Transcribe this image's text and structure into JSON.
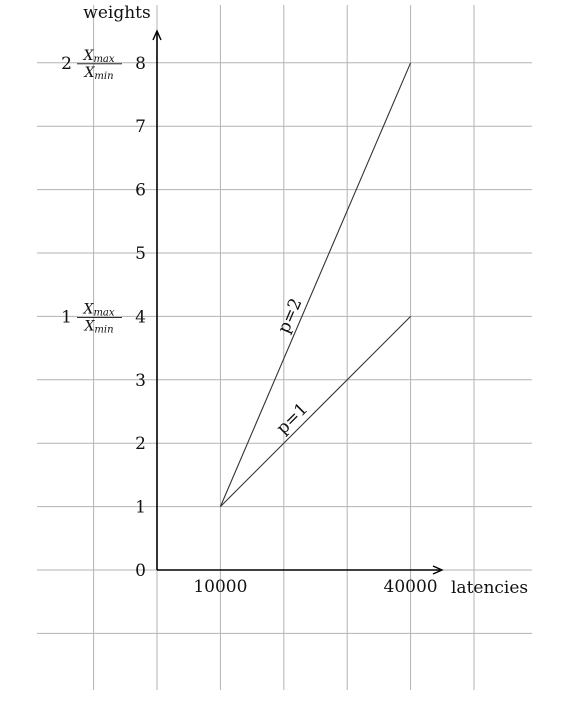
{
  "chart_data": {
    "type": "line",
    "xlabel": "latencies",
    "ylabel": "weights",
    "x_ticks": [
      {
        "value": 10000,
        "label": "10000"
      },
      {
        "value": 40000,
        "label": "40000"
      }
    ],
    "y_ticks": [
      0,
      1,
      2,
      3,
      4,
      5,
      6,
      7,
      8
    ],
    "y_annotations": [
      {
        "at": 8,
        "coef": "2",
        "num": "X",
        "num_sub": "max",
        "den": "X",
        "den_sub": "min"
      },
      {
        "at": 4,
        "coef": "1",
        "num": "X",
        "num_sub": "max",
        "den": "X",
        "den_sub": "min"
      }
    ],
    "series": [
      {
        "name": "p=2",
        "x": [
          10000,
          40000
        ],
        "y": [
          1,
          8
        ]
      },
      {
        "name": "p=1",
        "x": [
          10000,
          40000
        ],
        "y": [
          1,
          4
        ]
      }
    ],
    "grid": true,
    "colors": {
      "grid": "#b3b3b3",
      "axis": "#000000",
      "line": "#333333"
    }
  }
}
